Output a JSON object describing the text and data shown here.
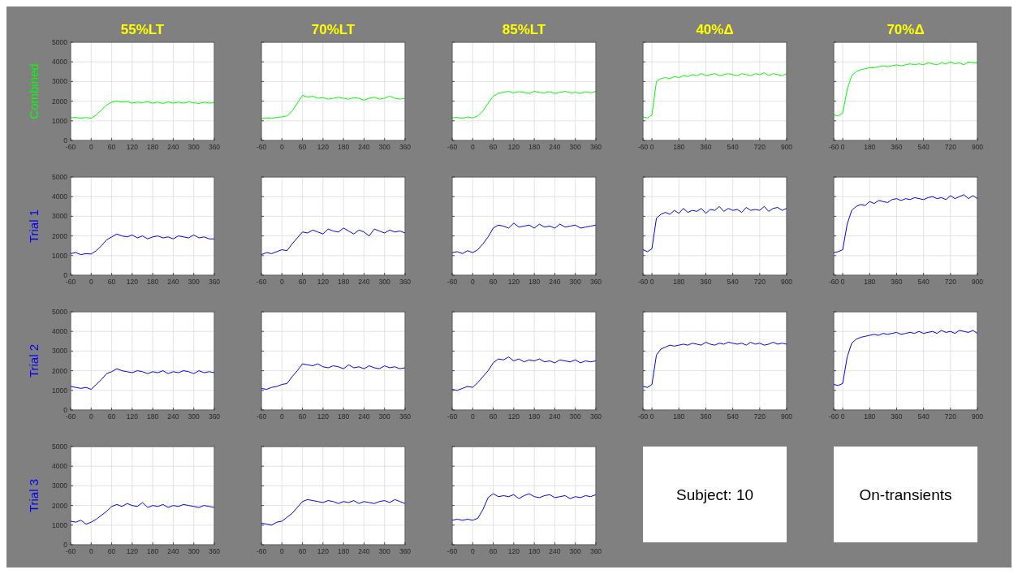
{
  "chart_data": [
    {
      "type": "line",
      "title": "55%LT",
      "ylabel": "Combined",
      "x": [
        -60,
        -45,
        -30,
        -15,
        0,
        15,
        30,
        45,
        60,
        75,
        90,
        105,
        120,
        135,
        150,
        165,
        180,
        195,
        210,
        225,
        240,
        255,
        270,
        285,
        300,
        315,
        330,
        345,
        360
      ],
      "xlim": [
        -60,
        360
      ],
      "xticks": [
        -60,
        0,
        60,
        120,
        180,
        240,
        300,
        360
      ],
      "ylim": [
        0,
        5000
      ],
      "yticks": [
        0,
        1000,
        2000,
        3000,
        4000,
        5000
      ],
      "grid": true,
      "series": [
        {
          "color": "#00ff00",
          "values": [
            1150,
            1180,
            1120,
            1170,
            1130,
            1300,
            1550,
            1800,
            1950,
            2000,
            1950,
            1980,
            1900,
            1950,
            1920,
            1970,
            1900,
            1950,
            1880,
            1960,
            1900,
            1950,
            1900,
            1960,
            1920,
            1880,
            1950,
            1900,
            1920
          ]
        }
      ]
    },
    {
      "type": "line",
      "title": "70%LT",
      "tick_labels": "x",
      "x": [
        -60,
        -45,
        -30,
        -15,
        0,
        15,
        30,
        45,
        60,
        75,
        90,
        105,
        120,
        135,
        150,
        165,
        180,
        195,
        210,
        225,
        240,
        255,
        270,
        285,
        300,
        315,
        330,
        345,
        360
      ],
      "xlim": [
        -60,
        360
      ],
      "xticks": [
        -60,
        0,
        60,
        120,
        180,
        240,
        300,
        360
      ],
      "ylim": [
        0,
        5000
      ],
      "yticks": [
        0,
        1000,
        2000,
        3000,
        4000,
        5000
      ],
      "grid": true,
      "series": [
        {
          "color": "#00ff00",
          "values": [
            1100,
            1150,
            1120,
            1180,
            1200,
            1250,
            1500,
            1900,
            2300,
            2200,
            2250,
            2150,
            2180,
            2100,
            2150,
            2200,
            2150,
            2100,
            2180,
            2150,
            2050,
            2150,
            2200,
            2100,
            2150,
            2250,
            2150,
            2100,
            2150
          ]
        }
      ]
    },
    {
      "type": "line",
      "title": "85%LT",
      "tick_labels": "x",
      "x": [
        -60,
        -45,
        -30,
        -15,
        0,
        15,
        30,
        45,
        60,
        75,
        90,
        105,
        120,
        135,
        150,
        165,
        180,
        195,
        210,
        225,
        240,
        255,
        270,
        285,
        300,
        315,
        330,
        345,
        360
      ],
      "xlim": [
        -60,
        360
      ],
      "xticks": [
        -60,
        0,
        60,
        120,
        180,
        240,
        300,
        360
      ],
      "ylim": [
        0,
        5000
      ],
      "yticks": [
        0,
        1000,
        2000,
        3000,
        4000,
        5000
      ],
      "grid": true,
      "series": [
        {
          "color": "#00ff00",
          "values": [
            1150,
            1180,
            1120,
            1200,
            1150,
            1250,
            1500,
            1900,
            2250,
            2400,
            2450,
            2500,
            2420,
            2480,
            2450,
            2400,
            2500,
            2450,
            2420,
            2480,
            2400,
            2450,
            2500,
            2430,
            2450,
            2400,
            2480,
            2420,
            2500
          ]
        }
      ]
    },
    {
      "type": "line",
      "title": "40%Δ",
      "tick_labels": "x",
      "x": [
        -60,
        -30,
        0,
        30,
        60,
        90,
        120,
        150,
        180,
        210,
        240,
        270,
        300,
        330,
        360,
        390,
        420,
        450,
        480,
        510,
        540,
        570,
        600,
        630,
        660,
        690,
        720,
        750,
        780,
        810,
        840,
        870,
        900
      ],
      "xlim": [
        -60,
        900
      ],
      "xticks": [
        -60,
        0,
        180,
        360,
        540,
        720,
        900
      ],
      "ylim": [
        0,
        5000
      ],
      "yticks": [
        0,
        1000,
        2000,
        3000,
        4000,
        5000
      ],
      "grid": true,
      "series": [
        {
          "color": "#00ff00",
          "values": [
            1200,
            1150,
            1300,
            3000,
            3150,
            3200,
            3150,
            3250,
            3200,
            3300,
            3250,
            3350,
            3300,
            3400,
            3300,
            3350,
            3400,
            3300,
            3350,
            3400,
            3350,
            3300,
            3400,
            3350,
            3300,
            3400,
            3350,
            3450,
            3300,
            3400,
            3350,
            3300,
            3400
          ]
        }
      ]
    },
    {
      "type": "line",
      "title": "70%Δ",
      "tick_labels": "x",
      "x": [
        -60,
        -30,
        0,
        30,
        60,
        90,
        120,
        150,
        180,
        210,
        240,
        270,
        300,
        330,
        360,
        390,
        420,
        450,
        480,
        510,
        540,
        570,
        600,
        630,
        660,
        690,
        720,
        750,
        780,
        810,
        840,
        870,
        900
      ],
      "xlim": [
        -60,
        900
      ],
      "xticks": [
        -60,
        0,
        180,
        360,
        540,
        720,
        900
      ],
      "ylim": [
        0,
        5000
      ],
      "yticks": [
        0,
        1000,
        2000,
        3000,
        4000,
        5000
      ],
      "grid": true,
      "series": [
        {
          "color": "#00ff00",
          "values": [
            1300,
            1250,
            1400,
            2600,
            3300,
            3500,
            3600,
            3650,
            3700,
            3700,
            3750,
            3800,
            3750,
            3800,
            3850,
            3800,
            3850,
            3900,
            3850,
            3900,
            3850,
            3950,
            3900,
            3850,
            3950,
            3900,
            4000,
            3900,
            3950,
            3850,
            4000,
            3950,
            3950
          ]
        }
      ]
    },
    {
      "type": "line",
      "ylabel": "Trial 1",
      "x": [
        -60,
        -45,
        -30,
        -15,
        0,
        15,
        30,
        45,
        60,
        75,
        90,
        105,
        120,
        135,
        150,
        165,
        180,
        195,
        210,
        225,
        240,
        255,
        270,
        285,
        300,
        315,
        330,
        345,
        360
      ],
      "xlim": [
        -60,
        360
      ],
      "xticks": [
        -60,
        0,
        60,
        120,
        180,
        240,
        300,
        360
      ],
      "ylim": [
        0,
        5000
      ],
      "yticks": [
        0,
        1000,
        2000,
        3000,
        4000,
        5000
      ],
      "grid": true,
      "series": [
        {
          "color": "#0000ff",
          "values": [
            1100,
            1150,
            1050,
            1100,
            1080,
            1250,
            1500,
            1800,
            1950,
            2100,
            2000,
            1950,
            2050,
            1900,
            2000,
            1850,
            1950,
            2000,
            1900,
            1950,
            1850,
            2000,
            1950,
            1900,
            2050,
            1900,
            1950,
            1850,
            1850
          ]
        }
      ]
    },
    {
      "type": "line",
      "tick_labels": "x",
      "x": [
        -60,
        -45,
        -30,
        -15,
        0,
        15,
        30,
        45,
        60,
        75,
        90,
        105,
        120,
        135,
        150,
        165,
        180,
        195,
        210,
        225,
        240,
        255,
        270,
        285,
        300,
        315,
        330,
        345,
        360
      ],
      "xlim": [
        -60,
        360
      ],
      "xticks": [
        -60,
        0,
        60,
        120,
        180,
        240,
        300,
        360
      ],
      "ylim": [
        0,
        5000
      ],
      "yticks": [
        0,
        1000,
        2000,
        3000,
        4000,
        5000
      ],
      "grid": true,
      "series": [
        {
          "color": "#0000ff",
          "values": [
            1050,
            1150,
            1100,
            1200,
            1300,
            1250,
            1600,
            1900,
            2200,
            2150,
            2300,
            2200,
            2100,
            2350,
            2250,
            2200,
            2400,
            2250,
            2100,
            2300,
            2200,
            2000,
            2350,
            2250,
            2150,
            2300,
            2200,
            2250,
            2150
          ]
        }
      ]
    },
    {
      "type": "line",
      "tick_labels": "x",
      "x": [
        -60,
        -45,
        -30,
        -15,
        0,
        15,
        30,
        45,
        60,
        75,
        90,
        105,
        120,
        135,
        150,
        165,
        180,
        195,
        210,
        225,
        240,
        255,
        270,
        285,
        300,
        315,
        330,
        345,
        360
      ],
      "xlim": [
        -60,
        360
      ],
      "xticks": [
        -60,
        0,
        60,
        120,
        180,
        240,
        300,
        360
      ],
      "ylim": [
        0,
        5000
      ],
      "yticks": [
        0,
        1000,
        2000,
        3000,
        4000,
        5000
      ],
      "grid": true,
      "series": [
        {
          "color": "#0000ff",
          "values": [
            1150,
            1200,
            1100,
            1250,
            1150,
            1300,
            1600,
            1950,
            2400,
            2550,
            2500,
            2400,
            2650,
            2450,
            2500,
            2550,
            2400,
            2600,
            2450,
            2500,
            2400,
            2600,
            2450,
            2500,
            2550,
            2400,
            2450,
            2500,
            2550
          ]
        }
      ]
    },
    {
      "type": "line",
      "tick_labels": "x",
      "x": [
        -60,
        -30,
        0,
        30,
        60,
        90,
        120,
        150,
        180,
        210,
        240,
        270,
        300,
        330,
        360,
        390,
        420,
        450,
        480,
        510,
        540,
        570,
        600,
        630,
        660,
        690,
        720,
        750,
        780,
        810,
        840,
        870,
        900
      ],
      "xlim": [
        -60,
        900
      ],
      "xticks": [
        -60,
        0,
        180,
        360,
        540,
        720,
        900
      ],
      "ylim": [
        0,
        5000
      ],
      "yticks": [
        0,
        1000,
        2000,
        3000,
        4000,
        5000
      ],
      "grid": true,
      "series": [
        {
          "color": "#0000ff",
          "values": [
            1300,
            1200,
            1350,
            2900,
            3100,
            3200,
            3100,
            3300,
            3150,
            3400,
            3200,
            3300,
            3250,
            3400,
            3150,
            3350,
            3300,
            3500,
            3250,
            3400,
            3300,
            3350,
            3200,
            3450,
            3300,
            3350,
            3300,
            3500,
            3250,
            3400,
            3450,
            3300,
            3400
          ]
        }
      ]
    },
    {
      "type": "line",
      "tick_labels": "x",
      "x": [
        -60,
        -30,
        0,
        30,
        60,
        90,
        120,
        150,
        180,
        210,
        240,
        270,
        300,
        330,
        360,
        390,
        420,
        450,
        480,
        510,
        540,
        570,
        600,
        630,
        660,
        690,
        720,
        750,
        780,
        810,
        840,
        870,
        900
      ],
      "xlim": [
        -60,
        900
      ],
      "xticks": [
        -60,
        0,
        180,
        360,
        540,
        720,
        900
      ],
      "ylim": [
        0,
        5000
      ],
      "yticks": [
        0,
        1000,
        2000,
        3000,
        4000,
        5000
      ],
      "grid": true,
      "series": [
        {
          "color": "#0000ff",
          "values": [
            1150,
            1200,
            1300,
            2600,
            3300,
            3500,
            3600,
            3550,
            3750,
            3650,
            3800,
            3750,
            3700,
            3850,
            3900,
            3800,
            3900,
            3850,
            3950,
            3900,
            3850,
            3950,
            4000,
            3900,
            3950,
            3850,
            4050,
            3900,
            4000,
            4100,
            3900,
            4050,
            3900
          ]
        }
      ]
    },
    {
      "type": "line",
      "ylabel": "Trial 2",
      "x": [
        -60,
        -45,
        -30,
        -15,
        0,
        15,
        30,
        45,
        60,
        75,
        90,
        105,
        120,
        135,
        150,
        165,
        180,
        195,
        210,
        225,
        240,
        255,
        270,
        285,
        300,
        315,
        330,
        345,
        360
      ],
      "xlim": [
        -60,
        360
      ],
      "xticks": [
        -60,
        0,
        60,
        120,
        180,
        240,
        300,
        360
      ],
      "ylim": [
        0,
        5000
      ],
      "yticks": [
        0,
        1000,
        2000,
        3000,
        4000,
        5000
      ],
      "grid": true,
      "series": [
        {
          "color": "#0000ff",
          "values": [
            1200,
            1150,
            1100,
            1150,
            1050,
            1300,
            1550,
            1850,
            1950,
            2100,
            2000,
            1950,
            1900,
            2000,
            1950,
            1850,
            1950,
            1900,
            2000,
            1850,
            1950,
            1900,
            2000,
            1950,
            1850,
            2000,
            1900,
            1950,
            1900
          ]
        }
      ]
    },
    {
      "type": "line",
      "tick_labels": "x",
      "x": [
        -60,
        -45,
        -30,
        -15,
        0,
        15,
        30,
        45,
        60,
        75,
        90,
        105,
        120,
        135,
        150,
        165,
        180,
        195,
        210,
        225,
        240,
        255,
        270,
        285,
        300,
        315,
        330,
        345,
        360
      ],
      "xlim": [
        -60,
        360
      ],
      "xticks": [
        -60,
        0,
        60,
        120,
        180,
        240,
        300,
        360
      ],
      "ylim": [
        0,
        5000
      ],
      "yticks": [
        0,
        1000,
        2000,
        3000,
        4000,
        5000
      ],
      "grid": true,
      "series": [
        {
          "color": "#0000ff",
          "values": [
            1100,
            1050,
            1150,
            1200,
            1300,
            1350,
            1700,
            2000,
            2350,
            2300,
            2250,
            2350,
            2200,
            2150,
            2250,
            2200,
            2100,
            2300,
            2150,
            2200,
            2100,
            2250,
            2150,
            2100,
            2250,
            2150,
            2200,
            2100,
            2150
          ]
        }
      ]
    },
    {
      "type": "line",
      "tick_labels": "x",
      "x": [
        -60,
        -45,
        -30,
        -15,
        0,
        15,
        30,
        45,
        60,
        75,
        90,
        105,
        120,
        135,
        150,
        165,
        180,
        195,
        210,
        225,
        240,
        255,
        270,
        285,
        300,
        315,
        330,
        345,
        360
      ],
      "xlim": [
        -60,
        360
      ],
      "xticks": [
        -60,
        0,
        60,
        120,
        180,
        240,
        300,
        360
      ],
      "ylim": [
        0,
        5000
      ],
      "yticks": [
        0,
        1000,
        2000,
        3000,
        4000,
        5000
      ],
      "grid": true,
      "series": [
        {
          "color": "#0000ff",
          "values": [
            1050,
            1000,
            1100,
            1200,
            1150,
            1400,
            1700,
            2000,
            2400,
            2600,
            2550,
            2700,
            2500,
            2600,
            2450,
            2550,
            2500,
            2600,
            2450,
            2500,
            2400,
            2550,
            2500,
            2450,
            2550,
            2400,
            2500,
            2450,
            2500
          ]
        }
      ]
    },
    {
      "type": "line",
      "tick_labels": "x",
      "x": [
        -60,
        -30,
        0,
        30,
        60,
        90,
        120,
        150,
        180,
        210,
        240,
        270,
        300,
        330,
        360,
        390,
        420,
        450,
        480,
        510,
        540,
        570,
        600,
        630,
        660,
        690,
        720,
        750,
        780,
        810,
        840,
        870,
        900
      ],
      "xlim": [
        -60,
        900
      ],
      "xticks": [
        -60,
        0,
        180,
        360,
        540,
        720,
        900
      ],
      "ylim": [
        0,
        5000
      ],
      "yticks": [
        0,
        1000,
        2000,
        3000,
        4000,
        5000
      ],
      "grid": true,
      "series": [
        {
          "color": "#0000ff",
          "values": [
            1200,
            1150,
            1300,
            2800,
            3100,
            3200,
            3300,
            3250,
            3300,
            3350,
            3300,
            3400,
            3350,
            3300,
            3450,
            3350,
            3300,
            3400,
            3350,
            3450,
            3400,
            3350,
            3400,
            3300,
            3450,
            3350,
            3400,
            3300,
            3350,
            3450,
            3350,
            3400,
            3350
          ]
        }
      ]
    },
    {
      "type": "line",
      "tick_labels": "x",
      "x": [
        -60,
        -30,
        0,
        30,
        60,
        90,
        120,
        150,
        180,
        210,
        240,
        270,
        300,
        330,
        360,
        390,
        420,
        450,
        480,
        510,
        540,
        570,
        600,
        630,
        660,
        690,
        720,
        750,
        780,
        810,
        840,
        870,
        900
      ],
      "xlim": [
        -60,
        900
      ],
      "xticks": [
        -60,
        0,
        180,
        360,
        540,
        720,
        900
      ],
      "ylim": [
        0,
        5000
      ],
      "yticks": [
        0,
        1000,
        2000,
        3000,
        4000,
        5000
      ],
      "grid": true,
      "series": [
        {
          "color": "#0000ff",
          "values": [
            1300,
            1250,
            1350,
            2700,
            3400,
            3600,
            3700,
            3750,
            3800,
            3850,
            3800,
            3900,
            3850,
            3900,
            3950,
            3850,
            3900,
            3950,
            3900,
            4000,
            3900,
            3950,
            4000,
            3900,
            4050,
            3950,
            4000,
            3900,
            4050,
            4000,
            3950,
            4050,
            3900
          ]
        }
      ]
    },
    {
      "type": "line",
      "ylabel": "Trial 3",
      "x": [
        -60,
        -45,
        -30,
        -15,
        0,
        15,
        30,
        45,
        60,
        75,
        90,
        105,
        120,
        135,
        150,
        165,
        180,
        195,
        210,
        225,
        240,
        255,
        270,
        285,
        300,
        315,
        330,
        345,
        360
      ],
      "xlim": [
        -60,
        360
      ],
      "xticks": [
        -60,
        0,
        60,
        120,
        180,
        240,
        300,
        360
      ],
      "ylim": [
        0,
        5000
      ],
      "yticks": [
        0,
        1000,
        2000,
        3000,
        4000,
        5000
      ],
      "grid": true,
      "series": [
        {
          "color": "#0000ff",
          "values": [
            1200,
            1150,
            1250,
            1050,
            1150,
            1300,
            1500,
            1700,
            1950,
            2050,
            1950,
            2100,
            2000,
            1950,
            2150,
            1900,
            2000,
            1950,
            2050,
            1900,
            2000,
            1950,
            2050,
            2000,
            1950,
            1900,
            2000,
            1950,
            1900
          ]
        }
      ]
    },
    {
      "type": "line",
      "tick_labels": "x",
      "x": [
        -60,
        -45,
        -30,
        -15,
        0,
        15,
        30,
        45,
        60,
        75,
        90,
        105,
        120,
        135,
        150,
        165,
        180,
        195,
        210,
        225,
        240,
        255,
        270,
        285,
        300,
        315,
        330,
        345,
        360
      ],
      "xlim": [
        -60,
        360
      ],
      "xticks": [
        -60,
        0,
        60,
        120,
        180,
        240,
        300,
        360
      ],
      "ylim": [
        0,
        5000
      ],
      "yticks": [
        0,
        1000,
        2000,
        3000,
        4000,
        5000
      ],
      "grid": true,
      "series": [
        {
          "color": "#0000ff",
          "values": [
            1100,
            1050,
            1000,
            1150,
            1200,
            1400,
            1600,
            1900,
            2200,
            2300,
            2250,
            2200,
            2150,
            2250,
            2200,
            2100,
            2200,
            2150,
            2250,
            2100,
            2200,
            2150,
            2100,
            2200,
            2250,
            2150,
            2300,
            2200,
            2100
          ]
        }
      ]
    },
    {
      "type": "line",
      "tick_labels": "x",
      "x": [
        -60,
        -45,
        -30,
        -15,
        0,
        15,
        30,
        45,
        60,
        75,
        90,
        105,
        120,
        135,
        150,
        165,
        180,
        195,
        210,
        225,
        240,
        255,
        270,
        285,
        300,
        315,
        330,
        345,
        360
      ],
      "xlim": [
        -60,
        360
      ],
      "xticks": [
        -60,
        0,
        60,
        120,
        180,
        240,
        300,
        360
      ],
      "ylim": [
        0,
        5000
      ],
      "yticks": [
        0,
        1000,
        2000,
        3000,
        4000,
        5000
      ],
      "grid": true,
      "series": [
        {
          "color": "#0000ff",
          "values": [
            1250,
            1300,
            1250,
            1300,
            1250,
            1350,
            1800,
            2400,
            2600,
            2450,
            2500,
            2450,
            2550,
            2350,
            2500,
            2600,
            2450,
            2400,
            2500,
            2550,
            2400,
            2450,
            2500,
            2350,
            2450,
            2400,
            2500,
            2450,
            2550
          ]
        }
      ]
    },
    {
      "type": "other",
      "title": "Subject: 10"
    },
    {
      "type": "other",
      "title": "On-transients"
    }
  ]
}
